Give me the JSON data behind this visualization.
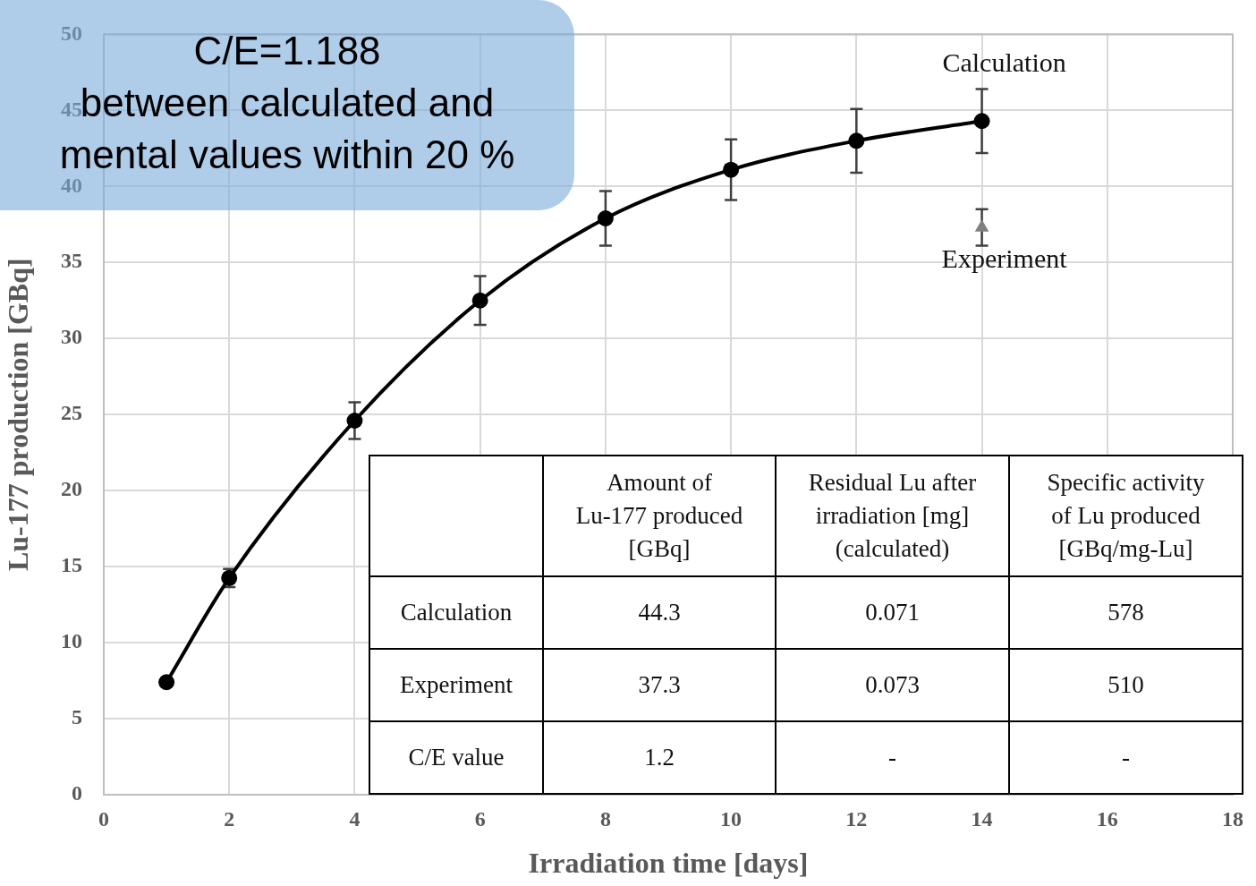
{
  "chart_data": {
    "type": "line",
    "xlabel": "Irradiation time [days]",
    "ylabel": "Lu-177 production [GBq]",
    "xlim": [
      0,
      18
    ],
    "xticks": [
      0,
      2,
      4,
      6,
      8,
      10,
      12,
      14,
      16,
      18
    ],
    "ylim": [
      0,
      50
    ],
    "yticks": [
      0,
      5,
      10,
      15,
      20,
      25,
      30,
      35,
      40,
      45,
      50
    ],
    "grid": true,
    "legend": false,
    "series": [
      {
        "name": "Calculation",
        "type": "line",
        "marker": "circle",
        "color": "#000000",
        "x": [
          1,
          2,
          4,
          6,
          8,
          10,
          12,
          14
        ],
        "values": [
          7.4,
          14.25,
          24.6,
          32.5,
          37.9,
          41.1,
          43.0,
          44.3
        ],
        "errors": [
          null,
          0.6,
          1.2,
          1.6,
          1.8,
          2.0,
          2.1,
          2.1
        ]
      },
      {
        "name": "Experiment",
        "type": "scatter",
        "marker": "triangle",
        "color": "#808080",
        "x": [
          14
        ],
        "values": [
          37.3
        ],
        "errors": [
          1.2
        ]
      }
    ],
    "annotations": [
      "C/E=1.188\nbetween calculated and\nmental values within 20 %",
      "Amount of\nLu-177 produced\n[GBq]",
      "Residual Lu after\nirradiation [mg]\n(calculated)",
      "Specific activity\nof Lu produced\n[GBq/mg-Lu]",
      "Calculation",
      "44.3",
      "0.071",
      "578",
      "Experiment",
      "37.3",
      "0.073",
      "510",
      "C/E value",
      "1.2",
      "-",
      "-"
    ]
  }
}
